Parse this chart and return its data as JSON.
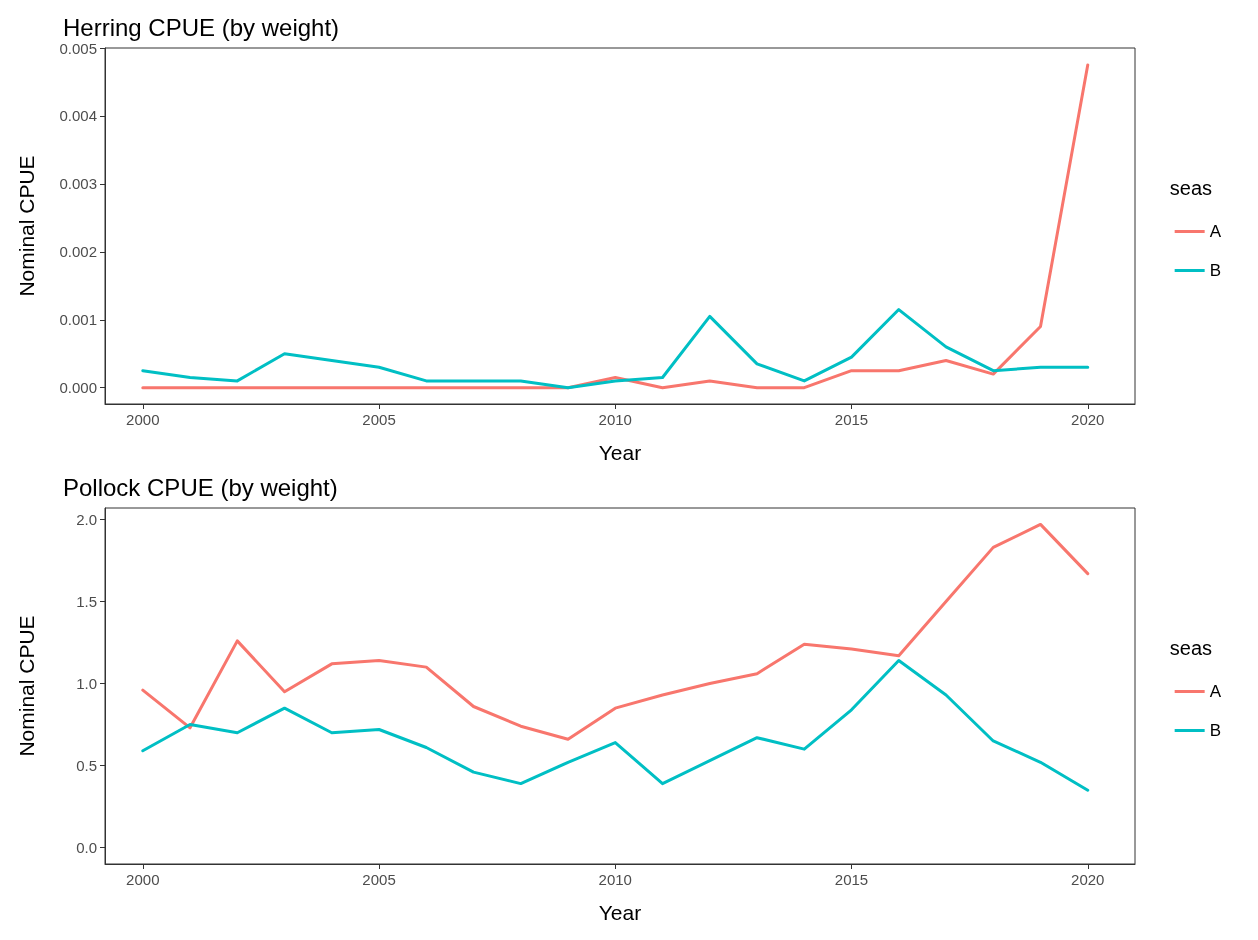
{
  "chart_data": [
    {
      "type": "line",
      "title": "Herring CPUE (by weight)",
      "xlabel": "Year",
      "ylabel": "Nominal CPUE",
      "legend_title": "seas",
      "legend": "right",
      "grid": false,
      "marker": "none",
      "line_style": "solid",
      "x": [
        2000,
        2001,
        2002,
        2003,
        2004,
        2005,
        2006,
        2007,
        2008,
        2009,
        2010,
        2011,
        2012,
        2013,
        2014,
        2015,
        2016,
        2017,
        2018,
        2019,
        2020
      ],
      "xlim": [
        1999.2,
        2021
      ],
      "xticks": [
        2000,
        2005,
        2010,
        2015,
        2020
      ],
      "ylim": [
        -0.00024,
        0.005
      ],
      "yticks": [
        {
          "value": 0,
          "label": "0.000"
        },
        {
          "value": 0.001,
          "label": "0.001"
        },
        {
          "value": 0.002,
          "label": "0.002"
        },
        {
          "value": 0.003,
          "label": "0.003"
        },
        {
          "value": 0.004,
          "label": "0.004"
        },
        {
          "value": 0.005,
          "label": "0.005"
        }
      ],
      "series": [
        {
          "name": "A",
          "color": "#f8766d",
          "values": [
            0,
            0,
            0,
            0,
            0,
            0,
            0,
            0,
            0,
            0,
            0.00015,
            0,
            0.0001,
            0,
            0,
            0.00025,
            0.00025,
            0.0004,
            0.0002,
            0.0009,
            0.00475
          ]
        },
        {
          "name": "B",
          "color": "#00bfc4",
          "values": [
            0.00025,
            0.00015,
            0.0001,
            0.0005,
            0.0004,
            0.0003,
            0.0001,
            0.0001,
            0.0001,
            0,
            0.0001,
            0.00015,
            0.00105,
            0.00035,
            0.0001,
            0.00045,
            0.00115,
            0.0006,
            0.00025,
            0.0003,
            0.0003
          ]
        }
      ]
    },
    {
      "type": "line",
      "title": "Pollock CPUE (by weight)",
      "xlabel": "Year",
      "ylabel": "Nominal CPUE",
      "legend_title": "seas",
      "legend": "right",
      "grid": false,
      "marker": "none",
      "line_style": "solid",
      "x": [
        2000,
        2001,
        2002,
        2003,
        2004,
        2005,
        2006,
        2007,
        2008,
        2009,
        2010,
        2011,
        2012,
        2013,
        2014,
        2015,
        2016,
        2017,
        2018,
        2019,
        2020
      ],
      "xlim": [
        1999.2,
        2021
      ],
      "xticks": [
        2000,
        2005,
        2010,
        2015,
        2020
      ],
      "ylim": [
        -0.1,
        2.07
      ],
      "yticks": [
        {
          "value": 0,
          "label": "0.0"
        },
        {
          "value": 0.5,
          "label": "0.5"
        },
        {
          "value": 1,
          "label": "1.0"
        },
        {
          "value": 1.5,
          "label": "1.5"
        },
        {
          "value": 2,
          "label": "2.0"
        }
      ],
      "series": [
        {
          "name": "A",
          "color": "#f8766d",
          "values": [
            0.96,
            0.73,
            1.26,
            0.95,
            1.12,
            1.14,
            1.1,
            0.86,
            0.74,
            0.66,
            0.85,
            0.93,
            1.0,
            1.06,
            1.24,
            1.21,
            1.17,
            1.5,
            1.83,
            1.97,
            1.67
          ]
        },
        {
          "name": "B",
          "color": "#00bfc4",
          "values": [
            0.59,
            0.75,
            0.7,
            0.85,
            0.7,
            0.72,
            0.61,
            0.46,
            0.39,
            0.52,
            0.64,
            0.39,
            0.53,
            0.67,
            0.6,
            0.84,
            1.14,
            0.93,
            0.65,
            0.52,
            0.35
          ]
        }
      ]
    }
  ]
}
